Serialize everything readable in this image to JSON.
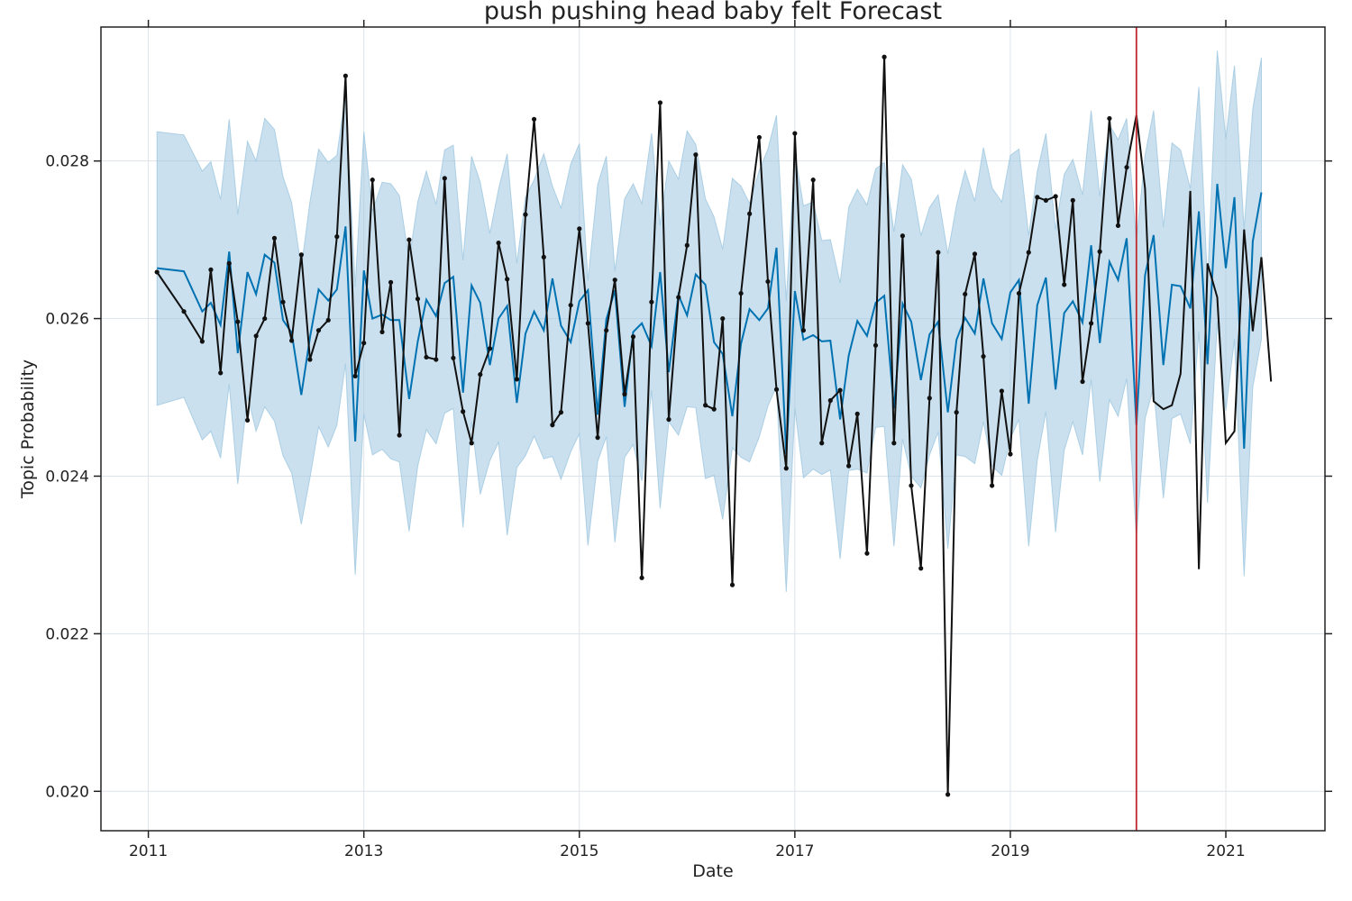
{
  "chart_data": {
    "type": "line",
    "title": "push pushing head baby felt Forecast",
    "xlabel": "Date",
    "ylabel": "Topic Probability",
    "xlim": [
      2010.56,
      2021.92
    ],
    "ylim": [
      0.0195,
      0.0297
    ],
    "x_ticks": [
      2011,
      2013,
      2015,
      2017,
      2019,
      2021
    ],
    "x_tick_labels": [
      "2011",
      "2013",
      "2015",
      "2017",
      "2019",
      "2021"
    ],
    "y_ticks": [
      0.02,
      0.022,
      0.024,
      0.026,
      0.028
    ],
    "y_tick_labels": [
      "0.020",
      "0.022",
      "0.024",
      "0.026",
      "0.028"
    ],
    "grid": true,
    "forecast_start": 2020.17,
    "colors": {
      "band": "#9ec7e0",
      "forecast_line": "#0072b2",
      "actual_line": "#111111",
      "cutoff_line": "#c0282d",
      "grid": "#dde3ea",
      "axes": "#222222"
    },
    "series": [
      {
        "name": "",
        "role": "uncertainty_band",
        "x": [
          2011.08,
          2011.33,
          2011.5,
          2011.58,
          2011.67,
          2011.75,
          2011.83,
          2011.92,
          2012.0,
          2012.08,
          2012.17,
          2012.25,
          2012.33,
          2012.42,
          2012.5,
          2012.58,
          2012.67,
          2012.75,
          2012.83,
          2012.92,
          2013.0,
          2013.08,
          2013.17,
          2013.25,
          2013.33,
          2013.42,
          2013.5,
          2013.58,
          2013.67,
          2013.75,
          2013.83,
          2013.92,
          2014.0,
          2014.08,
          2014.17,
          2014.25,
          2014.33,
          2014.42,
          2014.5,
          2014.58,
          2014.67,
          2014.75,
          2014.83,
          2014.92,
          2015.0,
          2015.08,
          2015.17,
          2015.25,
          2015.33,
          2015.42,
          2015.5,
          2015.58,
          2015.67,
          2015.75,
          2015.83,
          2015.92,
          2016.0,
          2016.08,
          2016.17,
          2016.25,
          2016.33,
          2016.42,
          2016.5,
          2016.58,
          2016.67,
          2016.75,
          2016.83,
          2016.92,
          2017.0,
          2017.08,
          2017.17,
          2017.25,
          2017.33,
          2017.42,
          2017.5,
          2017.58,
          2017.67,
          2017.75,
          2017.83,
          2017.92,
          2018.0,
          2018.08,
          2018.17,
          2018.25,
          2018.33,
          2018.42,
          2018.5,
          2018.58,
          2018.67,
          2018.75,
          2018.83,
          2018.92,
          2019.0,
          2019.08,
          2019.17,
          2019.25,
          2019.33,
          2019.42,
          2019.5,
          2019.58,
          2019.67,
          2019.75,
          2019.83,
          2019.92,
          2020.0,
          2020.08,
          2020.17,
          2020.25,
          2020.33,
          2020.42,
          2020.5,
          2020.58,
          2020.67,
          2020.75,
          2020.83,
          2020.92,
          2021.0,
          2021.08,
          2021.17,
          2021.25,
          2021.33
        ],
        "upper": [
          0.02837,
          0.02833,
          0.02787,
          0.02799,
          0.02751,
          0.02853,
          0.02732,
          0.02825,
          0.028,
          0.02854,
          0.0284,
          0.0278,
          0.02747,
          0.02664,
          0.02748,
          0.02815,
          0.02798,
          0.02807,
          0.02885,
          0.0264,
          0.02837,
          0.02736,
          0.02773,
          0.02771,
          0.02756,
          0.02674,
          0.02748,
          0.02787,
          0.02745,
          0.02814,
          0.0282,
          0.02674,
          0.02806,
          0.02773,
          0.02708,
          0.02764,
          0.02809,
          0.0267,
          0.02754,
          0.02776,
          0.02809,
          0.02768,
          0.0274,
          0.02796,
          0.02822,
          0.02648,
          0.0277,
          0.02806,
          0.0266,
          0.02752,
          0.02771,
          0.02746,
          0.02835,
          0.02718,
          0.028,
          0.02777,
          0.02838,
          0.02821,
          0.02752,
          0.02729,
          0.02688,
          0.02778,
          0.02768,
          0.02746,
          0.02788,
          0.02815,
          0.02858,
          0.02622,
          0.0281,
          0.02743,
          0.02748,
          0.02699,
          0.027,
          0.02645,
          0.02741,
          0.02764,
          0.02744,
          0.0279,
          0.02798,
          0.0271,
          0.02795,
          0.02777,
          0.02705,
          0.02741,
          0.02757,
          0.02682,
          0.02744,
          0.02788,
          0.02749,
          0.02817,
          0.02766,
          0.02748,
          0.02807,
          0.02815,
          0.02705,
          0.02786,
          0.02835,
          0.02713,
          0.02783,
          0.02802,
          0.02757,
          0.02864,
          0.02755,
          0.02846,
          0.02827,
          0.02854,
          0.02698,
          0.02807,
          0.02864,
          0.02716,
          0.02823,
          0.02814,
          0.02765,
          0.02894,
          0.02643,
          0.0294,
          0.02828,
          0.02921,
          0.02713,
          0.02866,
          0.02931
        ],
        "lower": [
          0.0249,
          0.025,
          0.02446,
          0.02457,
          0.02423,
          0.02517,
          0.0239,
          0.02502,
          0.02457,
          0.02488,
          0.0247,
          0.02426,
          0.02404,
          0.02339,
          0.02398,
          0.02463,
          0.02437,
          0.02465,
          0.02543,
          0.02275,
          0.02479,
          0.02427,
          0.02434,
          0.02422,
          0.02418,
          0.0233,
          0.02413,
          0.02459,
          0.02441,
          0.0248,
          0.02486,
          0.02335,
          0.0247,
          0.02377,
          0.0242,
          0.02443,
          0.02325,
          0.02411,
          0.02426,
          0.02451,
          0.02422,
          0.02425,
          0.02396,
          0.02431,
          0.02454,
          0.02312,
          0.02419,
          0.0245,
          0.02316,
          0.02424,
          0.0244,
          0.02394,
          0.02509,
          0.02359,
          0.02469,
          0.02452,
          0.02488,
          0.02487,
          0.02397,
          0.02401,
          0.02345,
          0.02436,
          0.02424,
          0.02418,
          0.0245,
          0.02489,
          0.02514,
          0.02253,
          0.02486,
          0.02398,
          0.02409,
          0.02402,
          0.02408,
          0.02295,
          0.02407,
          0.02409,
          0.02404,
          0.02462,
          0.02463,
          0.02311,
          0.02447,
          0.024,
          0.02385,
          0.02427,
          0.02456,
          0.02308,
          0.02427,
          0.02425,
          0.02416,
          0.02469,
          0.02413,
          0.02401,
          0.02448,
          0.02472,
          0.02311,
          0.0242,
          0.02482,
          0.02329,
          0.02433,
          0.02469,
          0.02427,
          0.02523,
          0.02393,
          0.02497,
          0.02476,
          0.02524,
          0.02322,
          0.02473,
          0.02513,
          0.02372,
          0.02473,
          0.02479,
          0.02441,
          0.02584,
          0.02366,
          0.02596,
          0.02483,
          0.02574,
          0.02273,
          0.02513,
          0.02574
        ]
      },
      {
        "name": "",
        "role": "forecast",
        "x": [
          2011.08,
          2011.33,
          2011.5,
          2011.58,
          2011.67,
          2011.75,
          2011.83,
          2011.92,
          2012.0,
          2012.08,
          2012.17,
          2012.25,
          2012.33,
          2012.42,
          2012.5,
          2012.58,
          2012.67,
          2012.75,
          2012.83,
          2012.92,
          2013.0,
          2013.08,
          2013.17,
          2013.25,
          2013.33,
          2013.42,
          2013.5,
          2013.58,
          2013.67,
          2013.75,
          2013.83,
          2013.92,
          2014.0,
          2014.08,
          2014.17,
          2014.25,
          2014.33,
          2014.42,
          2014.5,
          2014.58,
          2014.67,
          2014.75,
          2014.83,
          2014.92,
          2015.0,
          2015.08,
          2015.17,
          2015.25,
          2015.33,
          2015.42,
          2015.5,
          2015.58,
          2015.67,
          2015.75,
          2015.83,
          2015.92,
          2016.0,
          2016.08,
          2016.17,
          2016.25,
          2016.33,
          2016.42,
          2016.5,
          2016.58,
          2016.67,
          2016.75,
          2016.83,
          2016.92,
          2017.0,
          2017.08,
          2017.17,
          2017.25,
          2017.33,
          2017.42,
          2017.5,
          2017.58,
          2017.67,
          2017.75,
          2017.83,
          2017.92,
          2018.0,
          2018.08,
          2018.17,
          2018.25,
          2018.33,
          2018.42,
          2018.5,
          2018.58,
          2018.67,
          2018.75,
          2018.83,
          2018.92,
          2019.0,
          2019.08,
          2019.17,
          2019.25,
          2019.33,
          2019.42,
          2019.5,
          2019.58,
          2019.67,
          2019.75,
          2019.83,
          2019.92,
          2020.0,
          2020.08,
          2020.17,
          2020.25,
          2020.33,
          2020.42,
          2020.5,
          2020.58,
          2020.67,
          2020.75,
          2020.83,
          2020.92,
          2021.0,
          2021.08,
          2021.17,
          2021.25,
          2021.33
        ],
        "y": [
          0.02664,
          0.0266,
          0.02609,
          0.0262,
          0.02592,
          0.02685,
          0.02556,
          0.02659,
          0.02631,
          0.02681,
          0.02671,
          0.02598,
          0.02582,
          0.02503,
          0.02576,
          0.02637,
          0.02623,
          0.02637,
          0.02717,
          0.02444,
          0.02661,
          0.026,
          0.02605,
          0.02598,
          0.02598,
          0.02498,
          0.02571,
          0.02624,
          0.02603,
          0.02645,
          0.02653,
          0.02506,
          0.02642,
          0.0262,
          0.02541,
          0.026,
          0.02616,
          0.02493,
          0.02581,
          0.02609,
          0.02585,
          0.02651,
          0.02591,
          0.0257,
          0.02622,
          0.02636,
          0.02478,
          0.02599,
          0.02636,
          0.02488,
          0.02583,
          0.02594,
          0.02565,
          0.02659,
          0.02532,
          0.0263,
          0.02604,
          0.02656,
          0.02643,
          0.0257,
          0.02555,
          0.02476,
          0.02568,
          0.02612,
          0.02598,
          0.02613,
          0.0269,
          0.02428,
          0.02635,
          0.02573,
          0.02579,
          0.02571,
          0.02572,
          0.02472,
          0.02553,
          0.02597,
          0.02578,
          0.0262,
          0.02629,
          0.02486,
          0.02619,
          0.02596,
          0.02522,
          0.0258,
          0.02596,
          0.02481,
          0.02573,
          0.02601,
          0.02581,
          0.02651,
          0.02594,
          0.02574,
          0.02633,
          0.02649,
          0.02492,
          0.02617,
          0.02652,
          0.0251,
          0.02607,
          0.02622,
          0.02595,
          0.02693,
          0.02569,
          0.02672,
          0.02649,
          0.02702,
          0.02465,
          0.02655,
          0.02706,
          0.02541,
          0.02643,
          0.02641,
          0.02613,
          0.02736,
          0.02542,
          0.02771,
          0.02664,
          0.02754,
          0.02435,
          0.02698,
          0.0276
        ]
      },
      {
        "name": "",
        "role": "observed",
        "x": [
          2011.08,
          2011.33,
          2011.5,
          2011.58,
          2011.67,
          2011.75,
          2011.83,
          2011.92,
          2012.0,
          2012.08,
          2012.17,
          2012.25,
          2012.33,
          2012.42,
          2012.5,
          2012.58,
          2012.67,
          2012.75,
          2012.83,
          2012.92,
          2013.0,
          2013.08,
          2013.17,
          2013.25,
          2013.33,
          2013.42,
          2013.5,
          2013.58,
          2013.67,
          2013.75,
          2013.83,
          2013.92,
          2014.0,
          2014.08,
          2014.17,
          2014.25,
          2014.33,
          2014.42,
          2014.5,
          2014.58,
          2014.67,
          2014.75,
          2014.83,
          2014.92,
          2015.0,
          2015.08,
          2015.17,
          2015.25,
          2015.33,
          2015.42,
          2015.5,
          2015.58,
          2015.67,
          2015.75,
          2015.83,
          2015.92,
          2016.0,
          2016.08,
          2016.17,
          2016.25,
          2016.33,
          2016.42,
          2016.5,
          2016.58,
          2016.67,
          2016.75,
          2016.83,
          2016.92,
          2017.0,
          2017.08,
          2017.17,
          2017.25,
          2017.33,
          2017.42,
          2017.5,
          2017.58,
          2017.67,
          2017.75,
          2017.83,
          2017.92,
          2018.0,
          2018.08,
          2018.17,
          2018.25,
          2018.33,
          2018.42,
          2018.5,
          2018.58,
          2018.67,
          2018.75,
          2018.83,
          2018.92,
          2019.0,
          2019.08,
          2019.17,
          2019.25,
          2019.33,
          2019.42,
          2019.5,
          2019.58,
          2019.67,
          2019.75,
          2019.83,
          2019.92,
          2020.0,
          2020.08
        ],
        "y": [
          0.02659,
          0.02609,
          0.02571,
          0.02662,
          0.02531,
          0.0267,
          0.02596,
          0.02471,
          0.02578,
          0.026,
          0.02702,
          0.02621,
          0.02572,
          0.02681,
          0.02548,
          0.02585,
          0.02598,
          0.02704,
          0.02908,
          0.02527,
          0.02569,
          0.02776,
          0.02583,
          0.02646,
          0.02452,
          0.027,
          0.02625,
          0.02551,
          0.02548,
          0.02778,
          0.0255,
          0.02482,
          0.02442,
          0.02529,
          0.02562,
          0.02696,
          0.0265,
          0.02523,
          0.02732,
          0.02853,
          0.02678,
          0.02465,
          0.02481,
          0.02617,
          0.02714,
          0.02594,
          0.02449,
          0.02585,
          0.02649,
          0.02504,
          0.02577,
          0.02271,
          0.02621,
          0.02874,
          0.02472,
          0.02627,
          0.02693,
          0.02808,
          0.0249,
          0.02485,
          0.026,
          0.02262,
          0.02632,
          0.02733,
          0.0283,
          0.02647,
          0.0251,
          0.0241,
          0.02835,
          0.02585,
          0.02776,
          0.02442,
          0.02496,
          0.02509,
          0.02413,
          0.02479,
          0.02302,
          0.02566,
          0.02932,
          0.02442,
          0.02705,
          0.02388,
          0.02283,
          0.02499,
          0.02684,
          0.01996,
          0.02481,
          0.02631,
          0.02682,
          0.02552,
          0.02388,
          0.02508,
          0.02428,
          0.02632,
          0.02684,
          0.02754,
          0.0275,
          0.02755,
          0.02643,
          0.0275,
          0.0252,
          0.02594,
          0.02685,
          0.02854,
          0.02718,
          0.02792
        ]
      },
      {
        "name": "",
        "role": "observed_tail",
        "x": [
          2020.08,
          2020.17,
          2020.25,
          2020.33,
          2020.42,
          2020.5,
          2020.58,
          2020.67,
          2020.75,
          2020.83,
          2020.92,
          2021.0,
          2021.08,
          2021.17,
          2021.25,
          2021.33,
          2021.42
        ],
        "y": [
          0.02792,
          0.02858,
          0.02765,
          0.02495,
          0.02485,
          0.0249,
          0.0253,
          0.02762,
          0.02282,
          0.0267,
          0.02627,
          0.02442,
          0.02457,
          0.02713,
          0.02584,
          0.02678,
          0.0252
        ]
      }
    ]
  }
}
